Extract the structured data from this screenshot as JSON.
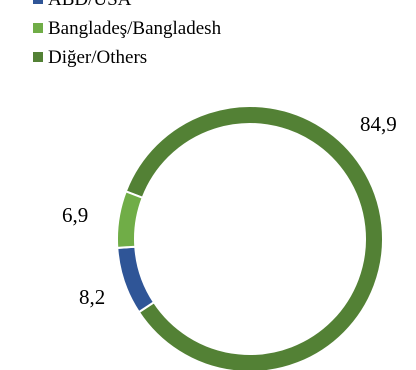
{
  "chart_data": {
    "type": "pie",
    "donut": true,
    "start_angle_deg": -159,
    "direction": "clockwise",
    "slices": [
      {
        "label": "Diğer/Others",
        "value": 84.9,
        "display": "84,9",
        "color": "#538135"
      },
      {
        "label": "ABD/USA",
        "value": 8.2,
        "display": "8,2",
        "color": "#2f5597"
      },
      {
        "label": "Bangladeş/Bangladesh",
        "value": 6.9,
        "display": "6,9",
        "color": "#70ad47"
      }
    ],
    "legend": {
      "placement": "top-left",
      "entries": [
        {
          "label": "ABD/USA",
          "color": "#2f5597"
        },
        {
          "label": "Bangladeş/Bangladesh",
          "color": "#70ad47"
        },
        {
          "label": "Diğer/Others",
          "color": "#538135"
        }
      ]
    }
  }
}
